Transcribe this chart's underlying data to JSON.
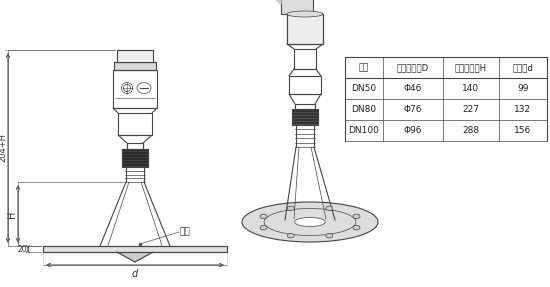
{
  "bg_color": "#ffffff",
  "line_color": "#444444",
  "table_headers": [
    "法兰",
    "喇叭口直径D",
    "喇叭口高度H",
    "四氟盘d"
  ],
  "table_rows": [
    [
      "DN50",
      "Φ46",
      "140",
      "99"
    ],
    [
      "DN80",
      "Φ76",
      "227",
      "132"
    ],
    [
      "DN100",
      "Φ96",
      "288",
      "156"
    ]
  ],
  "dim_labels": {
    "H_top": "204+H",
    "H_mid": "H",
    "flange_label": "法兰",
    "thickness_label": "20",
    "d_label": "d"
  },
  "figsize": [
    5.5,
    2.87
  ],
  "dpi": 100
}
